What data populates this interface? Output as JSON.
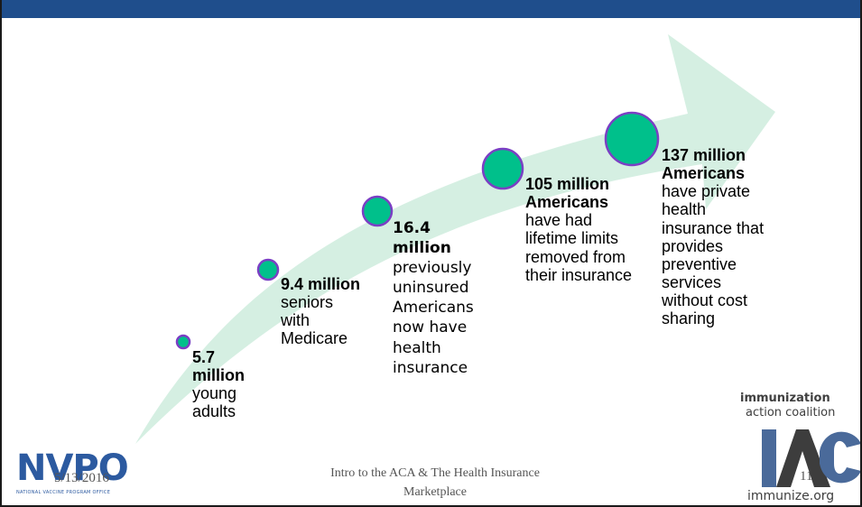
{
  "milestones": [
    {
      "id": "young-adults",
      "strong": "5.7 million",
      "body": "young adults"
    },
    {
      "id": "seniors",
      "strong": "9.4 million",
      "body": "seniors with Medicare"
    },
    {
      "id": "previously-uninsured",
      "strong": "16.4 million",
      "body": "previously uninsured Americans now have health insurance"
    },
    {
      "id": "lifetime-limits",
      "strong": "105 million Americans",
      "body": "have had lifetime limits removed from their insurance"
    },
    {
      "id": "preventive-services",
      "strong": "137 million Americans",
      "body": "have private health insurance that provides preventive services without cost sharing"
    }
  ],
  "footer": {
    "date": "5/13/2016",
    "title_line1": "Intro to the ACA & The Health Insurance",
    "title_line2": "Marketplace",
    "page_number": "11"
  },
  "logos": {
    "nvpo": {
      "text": "NVPO",
      "subtext": "NATIONAL VACCINE PROGRAM OFFICE"
    },
    "iac": {
      "line1": "immunization",
      "line2": "action coalition",
      "letters": "IAC",
      "url": "immunize.org"
    }
  },
  "colors": {
    "header_bar": "#1f4e8c",
    "arrow_fill": "#d5efe2",
    "circle_fill": "#00c08b",
    "circle_stroke": "#7b3fc4"
  }
}
